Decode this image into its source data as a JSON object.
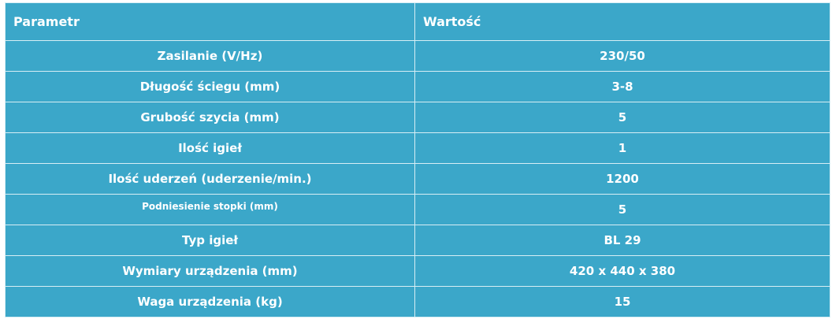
{
  "table": {
    "headers": {
      "param": "Parametr",
      "value": "Wartość"
    },
    "rows": [
      {
        "param": "Zasilanie (V/Hz)",
        "value": "230/50"
      },
      {
        "param": "Długość ściegu (mm)",
        "value": "3-8"
      },
      {
        "param": "Grubość szycia (mm)",
        "value": "5"
      },
      {
        "param": "Ilość igieł",
        "value": "1"
      },
      {
        "param": "Ilość uderzeń (uderzenie/min.)",
        "value": "1200"
      },
      {
        "param": "Podniesienie stopki (mm)",
        "value": "5"
      },
      {
        "param": "Typ igieł",
        "value": "BL 29"
      },
      {
        "param": "Wymiary urządzenia (mm)",
        "value": "420 x 440 x 380"
      },
      {
        "param": "Waga urządzenia (kg)",
        "value": "15"
      }
    ]
  },
  "colors": {
    "background": "#3ba7c9",
    "border": "#d7eef5",
    "text": "#ffffff"
  }
}
